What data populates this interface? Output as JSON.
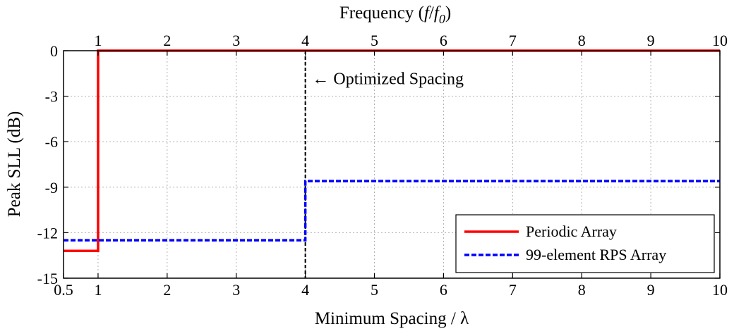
{
  "chart_data": {
    "type": "line",
    "title": "",
    "xlabel": "Minimum Spacing / λ",
    "ylabel": "Peak SLL (dB)",
    "top_xlabel": {
      "text": "Frequency (",
      "f": "f",
      "slash": "/",
      "f0_base": "f",
      "f0_sub": "0",
      "close": ")"
    },
    "xlim": [
      0.5,
      10
    ],
    "ylim": [
      -15,
      0
    ],
    "xticks": [
      0.5,
      1,
      2,
      3,
      4,
      5,
      6,
      7,
      8,
      9,
      10
    ],
    "xtick_labels": [
      "0.5",
      "1",
      "2",
      "3",
      "4",
      "5",
      "6",
      "7",
      "8",
      "9",
      "10"
    ],
    "top_xticks": [
      1,
      2,
      3,
      4,
      5,
      6,
      7,
      8,
      9,
      10
    ],
    "top_xtick_labels": [
      "1",
      "2",
      "3",
      "4",
      "5",
      "6",
      "7",
      "8",
      "9",
      "10"
    ],
    "yticks": [
      0,
      -3,
      -6,
      -9,
      -12,
      -15
    ],
    "ytick_labels": [
      "0",
      "-3",
      "-6",
      "-9",
      "-12",
      "-15"
    ],
    "grid": true,
    "legend_position": "bottom-right",
    "series": [
      {
        "name": "Periodic Array",
        "color": "#ff0000",
        "style": "solid",
        "x": [
          0.5,
          1,
          1,
          10
        ],
        "y": [
          -13.2,
          -13.2,
          0,
          0
        ]
      },
      {
        "name": "99-element RPS Array",
        "color": "#0000ff",
        "style": "dashed",
        "x": [
          0.5,
          4,
          4,
          10
        ],
        "y": [
          -12.5,
          -12.5,
          -8.6,
          -8.6
        ]
      }
    ],
    "vline": {
      "x": 4,
      "color": "#000000",
      "style": "dashed"
    },
    "annotations": [
      {
        "text": "← Optimized Spacing",
        "x": 4.1,
        "y": -2.2
      }
    ]
  }
}
